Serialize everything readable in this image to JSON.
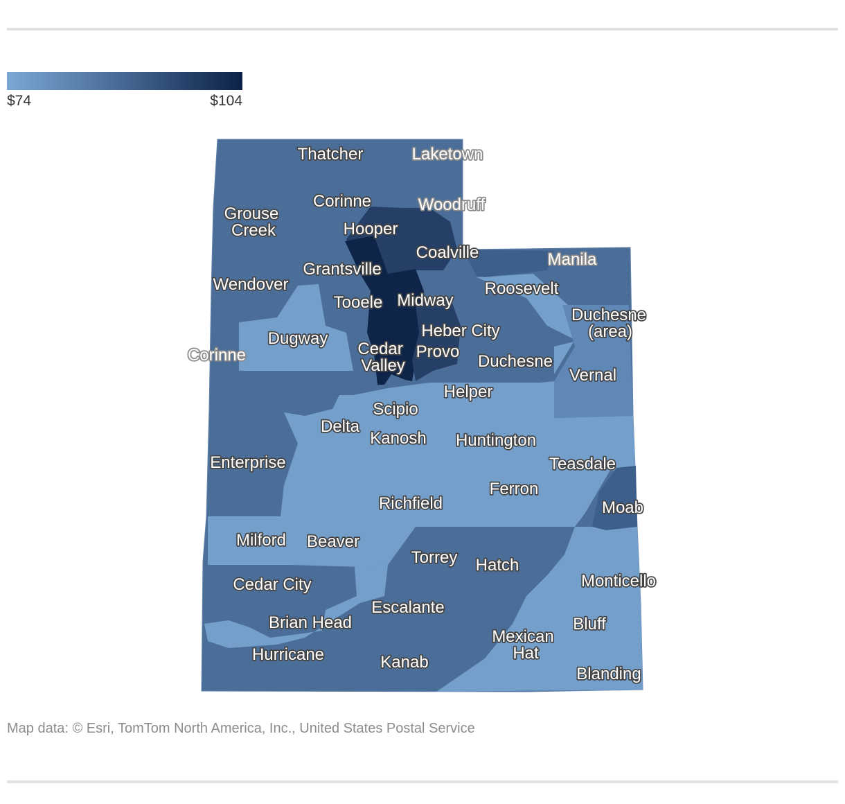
{
  "legend": {
    "min_label": "$74",
    "max_label": "$104",
    "colors": {
      "low": "#7ba7d4",
      "mid": "#4a6e98",
      "high": "#0c2147"
    }
  },
  "cities": [
    "Thatcher",
    "Laketown",
    "Corinne",
    "Woodruff",
    "Grouse Creek",
    "Hooper",
    "Coalville",
    "Grantsville",
    "Manila",
    "Wendover",
    "Tooele",
    "Midway",
    "Roosevelt",
    "Duchesne (area)",
    "Heber City",
    "Dugway",
    "Corinne",
    "Cedar Valley",
    "Provo",
    "Duchesne",
    "Vernal",
    "Helper",
    "Scipio",
    "Delta",
    "Kanosh",
    "Huntington",
    "Enterprise",
    "Teasdale",
    "Ferron",
    "Richfield",
    "Moab",
    "Milford",
    "Beaver",
    "Torrey",
    "Hatch",
    "Monticello",
    "Cedar City",
    "Escalante",
    "Brian Head",
    "Bluff",
    "Mexican Hat",
    "Hurricane",
    "Kanab",
    "Blanding"
  ],
  "credit": "Map data: © Esri, TomTom North America, Inc., United States Postal Service"
}
